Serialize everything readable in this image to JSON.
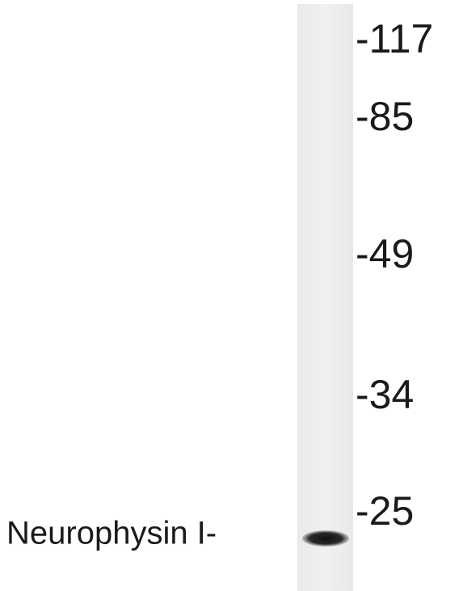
{
  "markers": [
    "-117",
    "-85",
    "-49",
    "-34",
    "-25"
  ],
  "band_label": "Neurophysin I-"
}
